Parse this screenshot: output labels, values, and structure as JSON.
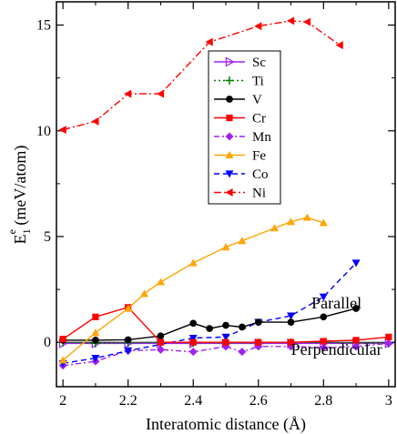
{
  "chart_data": {
    "type": "line",
    "xlabel": "Interatomic distance (Å)",
    "ylabel_main": "E",
    "ylabel_sub": "1",
    "ylabel_sup": "e",
    "ylabel_rest": " (meV/atom)",
    "xlim": [
      1.98,
      3.02
    ],
    "ylim": [
      -2.1,
      16.1
    ],
    "xticks": [
      2,
      2.2,
      2.4,
      2.6,
      2.8,
      3
    ],
    "xtick_labels": [
      "2",
      "2.2",
      "2.4",
      "2.6",
      "2.8",
      "3"
    ],
    "yticks": [
      0,
      5,
      10,
      15
    ],
    "ytick_labels": [
      "0",
      "5",
      "10",
      "15"
    ],
    "grid": false,
    "legend_position": "upper-center",
    "annotations": [
      {
        "text": "Parallel",
        "x": 2.84,
        "y": 1.6
      },
      {
        "text": "Perpendicular",
        "x": 2.84,
        "y": -0.6
      }
    ],
    "series": [
      {
        "name": "Sc",
        "color": "#a020f0",
        "dash": "",
        "marker": "triangle-right-open",
        "x": [
          2.0,
          2.1,
          2.2,
          2.3,
          2.4,
          2.5,
          2.6,
          2.7,
          2.8,
          2.9,
          3.0
        ],
        "y": [
          -0.05,
          -0.05,
          -0.05,
          -0.05,
          -0.05,
          -0.05,
          -0.05,
          -0.05,
          -0.05,
          -0.05,
          -0.05
        ]
      },
      {
        "name": "Ti",
        "color": "#008000",
        "dash": "2,3",
        "marker": "plus",
        "x": [
          2.0,
          2.1,
          2.2,
          2.3,
          2.4,
          2.5,
          2.6,
          2.7,
          2.8,
          2.9,
          3.0
        ],
        "y": [
          0.0,
          -0.05,
          -0.02,
          0.0,
          -0.02,
          -0.03,
          -0.02,
          -0.01,
          0.0,
          -0.03,
          -0.05
        ]
      },
      {
        "name": "V",
        "color": "#000000",
        "dash": "",
        "marker": "circle",
        "x": [
          2.0,
          2.1,
          2.2,
          2.3,
          2.4,
          2.45,
          2.5,
          2.55,
          2.6,
          2.7,
          2.8,
          2.9
        ],
        "y": [
          0.1,
          0.1,
          0.12,
          0.3,
          0.9,
          0.65,
          0.8,
          0.72,
          0.95,
          0.95,
          1.2,
          1.6
        ]
      },
      {
        "name": "Cr",
        "color": "#ff0000",
        "dash": "",
        "marker": "square",
        "x": [
          2.0,
          2.1,
          2.2,
          2.3,
          2.4,
          2.5,
          2.6,
          2.7,
          2.8,
          2.9,
          3.0
        ],
        "y": [
          0.15,
          1.2,
          1.65,
          0.0,
          0.0,
          0.0,
          0.0,
          0.0,
          0.05,
          0.1,
          0.25
        ]
      },
      {
        "name": "Mn",
        "color": "#a020f0",
        "dash": "6,3,2,3",
        "marker": "diamond",
        "x": [
          2.0,
          2.1,
          2.2,
          2.3,
          2.4,
          2.5,
          2.55,
          2.6,
          2.7,
          2.8,
          2.9,
          3.0
        ],
        "y": [
          -1.1,
          -0.9,
          -0.4,
          -0.35,
          -0.45,
          -0.2,
          -0.45,
          -0.2,
          -0.2,
          -0.25,
          -0.2,
          -0.05
        ]
      },
      {
        "name": "Fe",
        "color": "#ffa500",
        "dash": "",
        "marker": "triangle-up",
        "x": [
          2.0,
          2.1,
          2.2,
          2.25,
          2.3,
          2.4,
          2.5,
          2.55,
          2.65,
          2.7,
          2.75,
          2.8
        ],
        "y": [
          -0.85,
          0.45,
          1.6,
          2.3,
          2.85,
          3.75,
          4.5,
          4.8,
          5.4,
          5.7,
          5.9,
          5.65
        ]
      },
      {
        "name": "Co",
        "color": "#0000ff",
        "dash": "6,4",
        "marker": "triangle-down",
        "x": [
          2.0,
          2.1,
          2.2,
          2.4,
          2.5,
          2.6,
          2.7,
          2.8,
          2.9
        ],
        "y": [
          -1.0,
          -0.75,
          -0.4,
          0.2,
          0.25,
          0.95,
          1.25,
          2.15,
          3.75
        ]
      },
      {
        "name": "Ni",
        "color": "#ff0000",
        "dash": "8,3,2,3",
        "marker": "triangle-left",
        "x": [
          2.0,
          2.1,
          2.2,
          2.3,
          2.45,
          2.6,
          2.7,
          2.75,
          2.85
        ],
        "y": [
          10.05,
          10.45,
          11.75,
          11.75,
          14.2,
          14.95,
          15.2,
          15.15,
          14.05
        ]
      }
    ]
  }
}
